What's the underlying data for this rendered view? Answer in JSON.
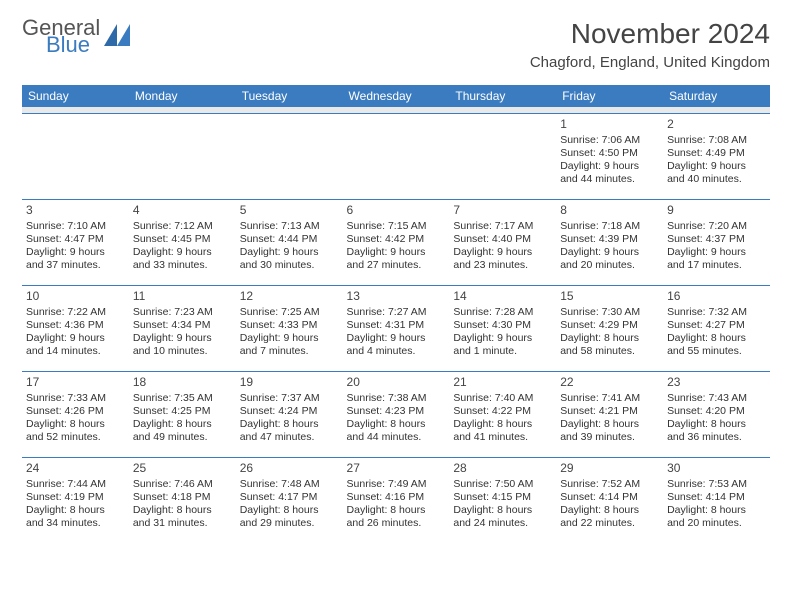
{
  "brand": {
    "top": "General",
    "bottom": "Blue"
  },
  "title": "November 2024",
  "location": "Chagford, England, United Kingdom",
  "colors": {
    "header_bg": "#3b7bbf",
    "header_text": "#ffffff",
    "border": "#3b7bbf",
    "gap": "#e9e9e9"
  },
  "dayHeaders": [
    "Sunday",
    "Monday",
    "Tuesday",
    "Wednesday",
    "Thursday",
    "Friday",
    "Saturday"
  ],
  "weeks": [
    [
      null,
      null,
      null,
      null,
      null,
      {
        "n": "1",
        "sr": "Sunrise: 7:06 AM",
        "ss": "Sunset: 4:50 PM",
        "d1": "Daylight: 9 hours",
        "d2": "and 44 minutes."
      },
      {
        "n": "2",
        "sr": "Sunrise: 7:08 AM",
        "ss": "Sunset: 4:49 PM",
        "d1": "Daylight: 9 hours",
        "d2": "and 40 minutes."
      }
    ],
    [
      {
        "n": "3",
        "sr": "Sunrise: 7:10 AM",
        "ss": "Sunset: 4:47 PM",
        "d1": "Daylight: 9 hours",
        "d2": "and 37 minutes."
      },
      {
        "n": "4",
        "sr": "Sunrise: 7:12 AM",
        "ss": "Sunset: 4:45 PM",
        "d1": "Daylight: 9 hours",
        "d2": "and 33 minutes."
      },
      {
        "n": "5",
        "sr": "Sunrise: 7:13 AM",
        "ss": "Sunset: 4:44 PM",
        "d1": "Daylight: 9 hours",
        "d2": "and 30 minutes."
      },
      {
        "n": "6",
        "sr": "Sunrise: 7:15 AM",
        "ss": "Sunset: 4:42 PM",
        "d1": "Daylight: 9 hours",
        "d2": "and 27 minutes."
      },
      {
        "n": "7",
        "sr": "Sunrise: 7:17 AM",
        "ss": "Sunset: 4:40 PM",
        "d1": "Daylight: 9 hours",
        "d2": "and 23 minutes."
      },
      {
        "n": "8",
        "sr": "Sunrise: 7:18 AM",
        "ss": "Sunset: 4:39 PM",
        "d1": "Daylight: 9 hours",
        "d2": "and 20 minutes."
      },
      {
        "n": "9",
        "sr": "Sunrise: 7:20 AM",
        "ss": "Sunset: 4:37 PM",
        "d1": "Daylight: 9 hours",
        "d2": "and 17 minutes."
      }
    ],
    [
      {
        "n": "10",
        "sr": "Sunrise: 7:22 AM",
        "ss": "Sunset: 4:36 PM",
        "d1": "Daylight: 9 hours",
        "d2": "and 14 minutes."
      },
      {
        "n": "11",
        "sr": "Sunrise: 7:23 AM",
        "ss": "Sunset: 4:34 PM",
        "d1": "Daylight: 9 hours",
        "d2": "and 10 minutes."
      },
      {
        "n": "12",
        "sr": "Sunrise: 7:25 AM",
        "ss": "Sunset: 4:33 PM",
        "d1": "Daylight: 9 hours",
        "d2": "and 7 minutes."
      },
      {
        "n": "13",
        "sr": "Sunrise: 7:27 AM",
        "ss": "Sunset: 4:31 PM",
        "d1": "Daylight: 9 hours",
        "d2": "and 4 minutes."
      },
      {
        "n": "14",
        "sr": "Sunrise: 7:28 AM",
        "ss": "Sunset: 4:30 PM",
        "d1": "Daylight: 9 hours",
        "d2": "and 1 minute."
      },
      {
        "n": "15",
        "sr": "Sunrise: 7:30 AM",
        "ss": "Sunset: 4:29 PM",
        "d1": "Daylight: 8 hours",
        "d2": "and 58 minutes."
      },
      {
        "n": "16",
        "sr": "Sunrise: 7:32 AM",
        "ss": "Sunset: 4:27 PM",
        "d1": "Daylight: 8 hours",
        "d2": "and 55 minutes."
      }
    ],
    [
      {
        "n": "17",
        "sr": "Sunrise: 7:33 AM",
        "ss": "Sunset: 4:26 PM",
        "d1": "Daylight: 8 hours",
        "d2": "and 52 minutes."
      },
      {
        "n": "18",
        "sr": "Sunrise: 7:35 AM",
        "ss": "Sunset: 4:25 PM",
        "d1": "Daylight: 8 hours",
        "d2": "and 49 minutes."
      },
      {
        "n": "19",
        "sr": "Sunrise: 7:37 AM",
        "ss": "Sunset: 4:24 PM",
        "d1": "Daylight: 8 hours",
        "d2": "and 47 minutes."
      },
      {
        "n": "20",
        "sr": "Sunrise: 7:38 AM",
        "ss": "Sunset: 4:23 PM",
        "d1": "Daylight: 8 hours",
        "d2": "and 44 minutes."
      },
      {
        "n": "21",
        "sr": "Sunrise: 7:40 AM",
        "ss": "Sunset: 4:22 PM",
        "d1": "Daylight: 8 hours",
        "d2": "and 41 minutes."
      },
      {
        "n": "22",
        "sr": "Sunrise: 7:41 AM",
        "ss": "Sunset: 4:21 PM",
        "d1": "Daylight: 8 hours",
        "d2": "and 39 minutes."
      },
      {
        "n": "23",
        "sr": "Sunrise: 7:43 AM",
        "ss": "Sunset: 4:20 PM",
        "d1": "Daylight: 8 hours",
        "d2": "and 36 minutes."
      }
    ],
    [
      {
        "n": "24",
        "sr": "Sunrise: 7:44 AM",
        "ss": "Sunset: 4:19 PM",
        "d1": "Daylight: 8 hours",
        "d2": "and 34 minutes."
      },
      {
        "n": "25",
        "sr": "Sunrise: 7:46 AM",
        "ss": "Sunset: 4:18 PM",
        "d1": "Daylight: 8 hours",
        "d2": "and 31 minutes."
      },
      {
        "n": "26",
        "sr": "Sunrise: 7:48 AM",
        "ss": "Sunset: 4:17 PM",
        "d1": "Daylight: 8 hours",
        "d2": "and 29 minutes."
      },
      {
        "n": "27",
        "sr": "Sunrise: 7:49 AM",
        "ss": "Sunset: 4:16 PM",
        "d1": "Daylight: 8 hours",
        "d2": "and 26 minutes."
      },
      {
        "n": "28",
        "sr": "Sunrise: 7:50 AM",
        "ss": "Sunset: 4:15 PM",
        "d1": "Daylight: 8 hours",
        "d2": "and 24 minutes."
      },
      {
        "n": "29",
        "sr": "Sunrise: 7:52 AM",
        "ss": "Sunset: 4:14 PM",
        "d1": "Daylight: 8 hours",
        "d2": "and 22 minutes."
      },
      {
        "n": "30",
        "sr": "Sunrise: 7:53 AM",
        "ss": "Sunset: 4:14 PM",
        "d1": "Daylight: 8 hours",
        "d2": "and 20 minutes."
      }
    ]
  ]
}
